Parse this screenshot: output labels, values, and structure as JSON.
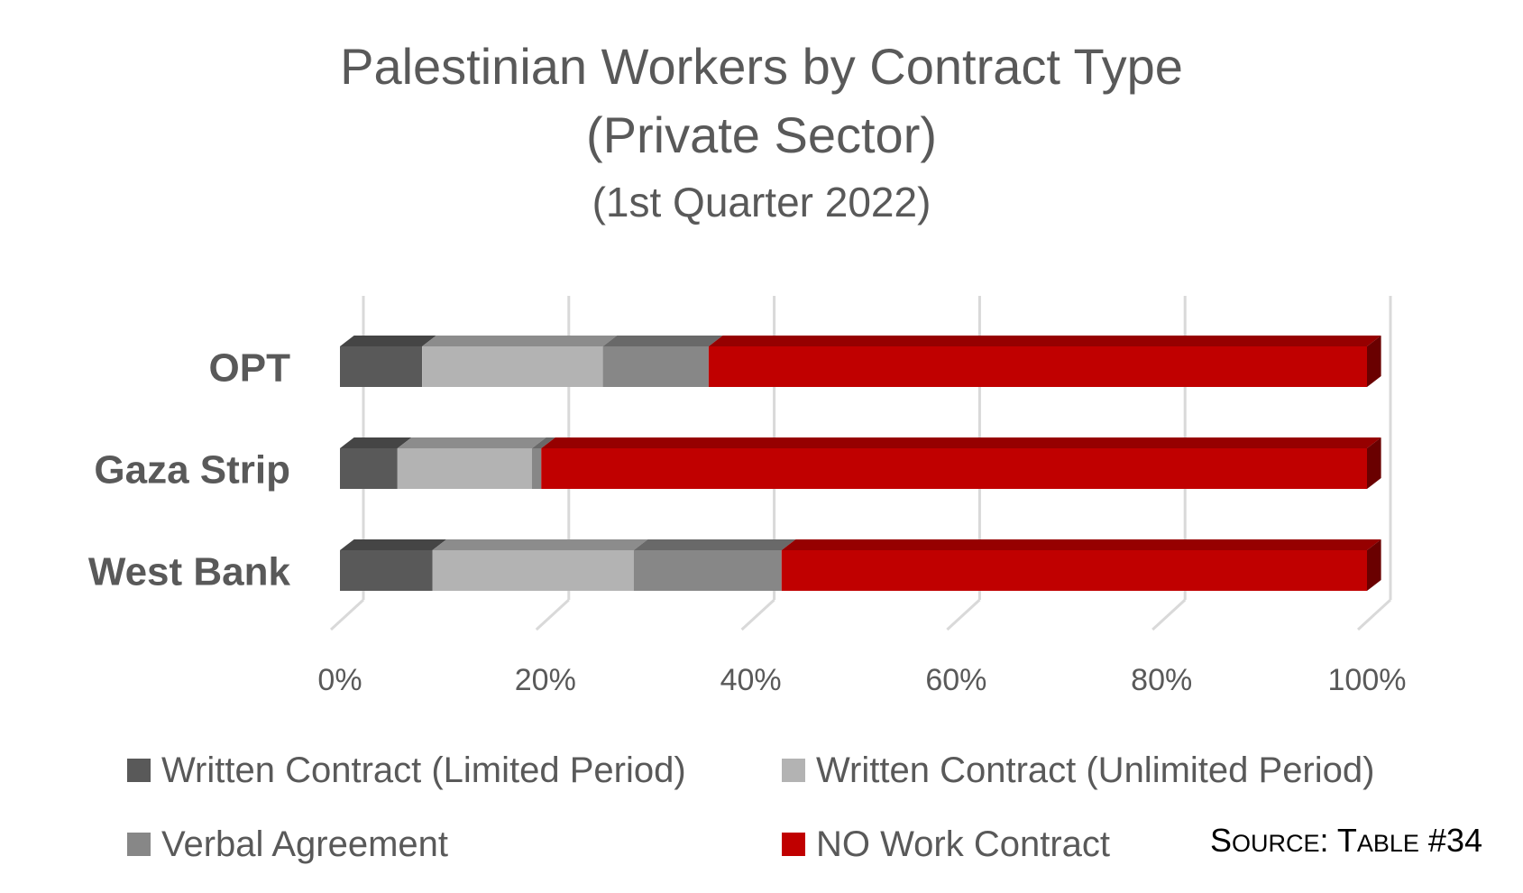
{
  "chart_data": {
    "type": "bar",
    "orientation": "horizontal",
    "stacked": "100%",
    "title": "Palestinian Workers by Contract Type",
    "title_line2": "(Private Sector)",
    "subtitle": "(1st Quarter 2022)",
    "categories": [
      "OPT",
      "Gaza Strip",
      "West Bank"
    ],
    "series": [
      {
        "name": "Written Contract (Limited Period)",
        "color": "#595959",
        "values": [
          8,
          5.6,
          9
        ]
      },
      {
        "name": "Written Contract (Unlimited Period)",
        "color": "#b3b3b3",
        "values": [
          17.6,
          13.1,
          19.6
        ]
      },
      {
        "name": "Verbal Agreement",
        "color": "#878787",
        "values": [
          10.3,
          0.9,
          14.4
        ]
      },
      {
        "name": "NO Work Contract",
        "color": "#c00000",
        "values": [
          64.1,
          80.4,
          57
        ]
      }
    ],
    "xlim": [
      0,
      100
    ],
    "x_ticks": [
      "0%",
      "20%",
      "40%",
      "60%",
      "80%",
      "100%"
    ],
    "grid": true,
    "legend_position": "bottom",
    "source": {
      "prefix": "S",
      "small1": "OURCE",
      "mid": ": T",
      "small2": "ABLE",
      "suffix": " #34"
    }
  }
}
